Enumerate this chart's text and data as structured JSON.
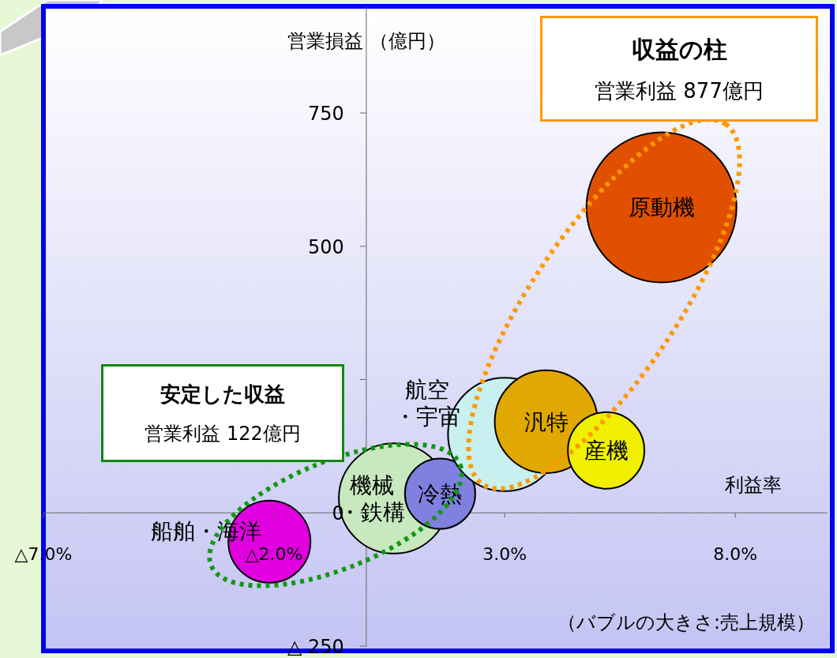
{
  "chart_data": {
    "type": "bubble",
    "xlabel": "利益率",
    "ylabel": "営業損益 （億円）",
    "xlim": [
      -7,
      10
    ],
    "ylim": [
      -250,
      950
    ],
    "xticks": [
      {
        "value": -7,
        "label": "△7.0%"
      },
      {
        "value": -2,
        "label": "△2.0%"
      },
      {
        "value": 3,
        "label": "3.0%"
      },
      {
        "value": 8,
        "label": "8.0%"
      }
    ],
    "yticks": [
      {
        "value": -250,
        "label": "△ 250"
      },
      0,
      {
        "value": 250,
        "label": null
      },
      500,
      750
    ],
    "grid": false,
    "legend": false,
    "series": [
      {
        "name": "船舶・海洋",
        "color": "#e000e0",
        "x": [
          -2.1
        ],
        "values": [
          -54
        ],
        "sizes": [
          0.3
        ]
      },
      {
        "name": "機械・鉄構",
        "color": "#c8e8c0",
        "x": [
          0.6
        ],
        "values": [
          27
        ],
        "sizes": [
          0.54
        ]
      },
      {
        "name": "冷熱",
        "color": "#8080e0",
        "x": [
          1.6
        ],
        "values": [
          36
        ],
        "sizes": [
          0.22
        ]
      },
      {
        "name": "航空・宇宙",
        "color": "#c8f0f0",
        "x": [
          3.0
        ],
        "values": [
          147
        ],
        "sizes": [
          0.57
        ]
      },
      {
        "name": "汎特",
        "color": "#e0a800",
        "x": [
          3.9
        ],
        "values": [
          171
        ],
        "sizes": [
          0.47
        ]
      },
      {
        "name": "産機",
        "color": "#f0f000",
        "x": [
          5.2
        ],
        "values": [
          117
        ],
        "sizes": [
          0.26
        ]
      },
      {
        "name": "原動機",
        "color": "#e05000",
        "x": [
          6.4
        ],
        "values": [
          573
        ],
        "sizes": [
          1
        ]
      }
    ],
    "annotations": [
      "収益の柱",
      "営業利益 877億円",
      "安定した収益",
      "営業利益 122億円",
      "（バブルの大きさ:売上規模）"
    ]
  }
}
